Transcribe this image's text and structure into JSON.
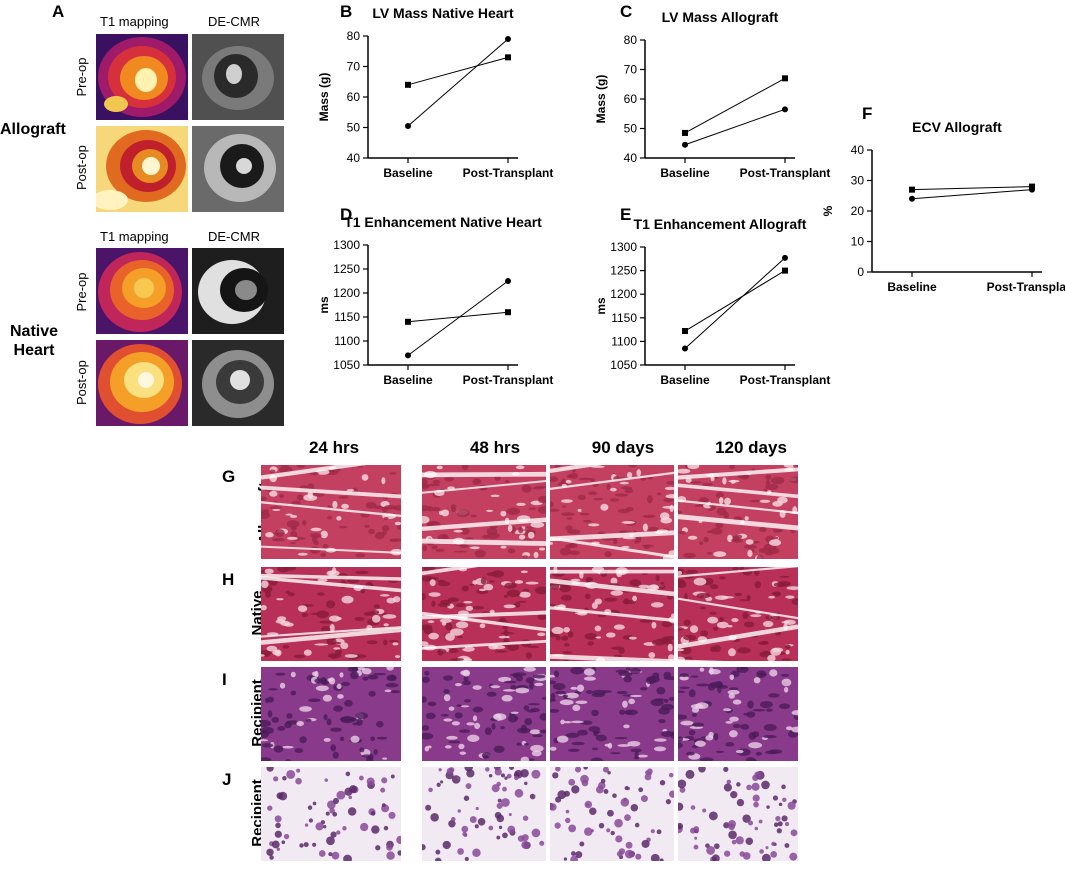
{
  "panel_a": {
    "label": "A",
    "col_headers": [
      "T1 mapping",
      "DE-CMR"
    ],
    "groups": [
      {
        "name": "Allograft",
        "rows": [
          "Pre-op",
          "Post-op"
        ]
      },
      {
        "name": "Native Heart",
        "rows": [
          "Pre-op",
          "Post-op"
        ]
      }
    ]
  },
  "histology": {
    "columns": [
      "24 hrs",
      "48 hrs",
      "90 days",
      "120 days"
    ],
    "rows": [
      {
        "label": "G",
        "name": "Allograft"
      },
      {
        "label": "H",
        "name": "Native Heart"
      },
      {
        "label": "I",
        "name": "Recipient Liver"
      },
      {
        "label": "J",
        "name": "Recipient Lung"
      }
    ]
  },
  "chart_data": [
    {
      "panel": "B",
      "type": "line",
      "title": "LV Mass Native Heart",
      "ylabel": "Mass (g)",
      "xlabel": "",
      "categories": [
        "Baseline",
        "Post-Transplant"
      ],
      "ylim": [
        40,
        80
      ],
      "yticks": [
        40,
        50,
        60,
        70,
        80
      ],
      "series": [
        {
          "marker": "square",
          "values": [
            64,
            73
          ]
        },
        {
          "marker": "circle",
          "values": [
            50.5,
            79
          ]
        }
      ]
    },
    {
      "panel": "C",
      "type": "line",
      "title": "LV Mass Allograft",
      "ylabel": "Mass (g)",
      "xlabel": "",
      "categories": [
        "Baseline",
        "Post-Transplant"
      ],
      "ylim": [
        40,
        80
      ],
      "yticks": [
        40,
        50,
        60,
        70,
        80
      ],
      "series": [
        {
          "marker": "square",
          "values": [
            48.5,
            67
          ]
        },
        {
          "marker": "circle",
          "values": [
            44.5,
            56.5
          ]
        }
      ]
    },
    {
      "panel": "D",
      "type": "line",
      "title": "T1 Enhancement Native Heart",
      "ylabel": "ms",
      "xlabel": "",
      "categories": [
        "Baseline",
        "Post-Transplant"
      ],
      "ylim": [
        1050,
        1300
      ],
      "yticks": [
        1050,
        1100,
        1150,
        1200,
        1250,
        1300
      ],
      "series": [
        {
          "marker": "square",
          "values": [
            1140,
            1160
          ]
        },
        {
          "marker": "circle",
          "values": [
            1070,
            1225
          ]
        }
      ]
    },
    {
      "panel": "E",
      "type": "line",
      "title": "T1 Enhancement Allograft",
      "ylabel": "ms",
      "xlabel": "",
      "categories": [
        "Baseline",
        "Post-Transplant"
      ],
      "ylim": [
        1050,
        1300
      ],
      "yticks": [
        1050,
        1100,
        1150,
        1200,
        1250,
        1300
      ],
      "series": [
        {
          "marker": "square",
          "values": [
            1122,
            1250
          ]
        },
        {
          "marker": "circle",
          "values": [
            1085,
            1277
          ]
        }
      ]
    },
    {
      "panel": "F",
      "type": "line",
      "title": "ECV Allograft",
      "ylabel": "%",
      "xlabel": "",
      "categories": [
        "Baseline",
        "Post-Transplant"
      ],
      "ylim": [
        0,
        40
      ],
      "yticks": [
        0,
        10,
        20,
        30,
        40
      ],
      "series": [
        {
          "marker": "square",
          "values": [
            27,
            28
          ]
        },
        {
          "marker": "circle",
          "values": [
            24,
            27
          ]
        }
      ]
    }
  ]
}
